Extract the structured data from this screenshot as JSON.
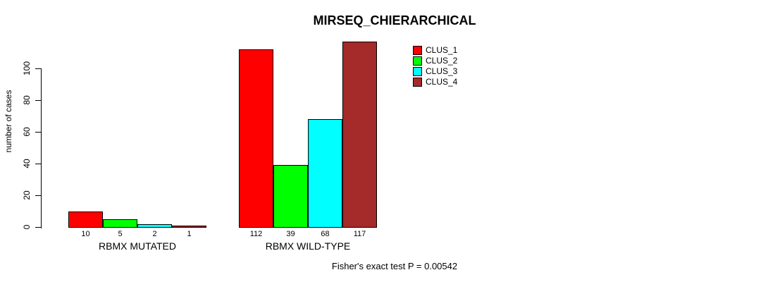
{
  "title": "MIRSEQ_CHIERARCHICAL",
  "ylabel": "number of cases",
  "legend": {
    "entries": [
      {
        "label": "CLUS_1",
        "color": "#ff0000"
      },
      {
        "label": "CLUS_2",
        "color": "#00ff00"
      },
      {
        "label": "CLUS_3",
        "color": "#00ffff"
      },
      {
        "label": "CLUS_4",
        "color": "#a52a2a"
      }
    ]
  },
  "chart_data": {
    "type": "bar",
    "title": "MIRSEQ_CHIERARCHICAL",
    "ylabel": "number of cases",
    "xlabel": "",
    "categories": [
      "RBMX MUTATED",
      "RBMX WILD-TYPE"
    ],
    "series": [
      {
        "name": "CLUS_1",
        "color": "#ff0000",
        "values": [
          10,
          112
        ]
      },
      {
        "name": "CLUS_2",
        "color": "#00ff00",
        "values": [
          5,
          39
        ]
      },
      {
        "name": "CLUS_3",
        "color": "#00ffff",
        "values": [
          2,
          68
        ]
      },
      {
        "name": "CLUS_4",
        "color": "#a52a2a",
        "values": [
          1,
          117
        ]
      }
    ],
    "bar_value_labels": [
      [
        10,
        5,
        2,
        1
      ],
      [
        112,
        39,
        68,
        117
      ]
    ],
    "yticks": [
      0,
      20,
      40,
      60,
      80,
      100
    ],
    "ylim": [
      0,
      117
    ],
    "grid": false,
    "legend_position": "top-right-inside",
    "annotation": "Fisher's exact test P = 0.00542"
  }
}
